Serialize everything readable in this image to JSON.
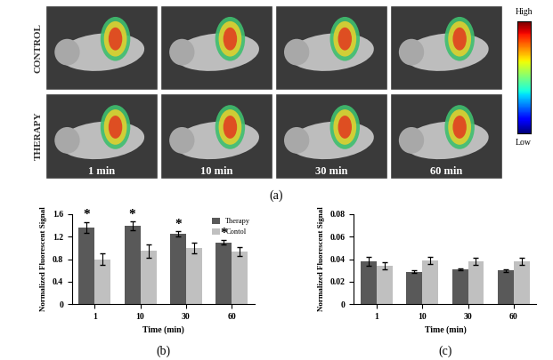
{
  "images": {
    "caption": "(a)",
    "rows": [
      "CONTROL",
      "THERAPY"
    ],
    "columns": [
      "1 min",
      "10 min",
      "30 min",
      "60 min"
    ],
    "colorbar": {
      "high": "High",
      "low": "Low"
    }
  },
  "chart_data": [
    {
      "type": "bar",
      "caption": "(b)",
      "x_label": "Time (min)",
      "y_label": "Normalized Fluorescent Signal",
      "categories": [
        "1",
        "10",
        "30",
        "60"
      ],
      "series": [
        {
          "name": "Therapy",
          "color": "#595959",
          "values": [
            1.36,
            1.39,
            1.25,
            1.1
          ],
          "errors": [
            0.1,
            0.08,
            0.05,
            0.04
          ]
        },
        {
          "name": "Contol",
          "color": "#c0c0c0",
          "values": [
            0.8,
            0.95,
            1.0,
            0.93
          ],
          "errors": [
            0.1,
            0.12,
            0.1,
            0.08
          ]
        }
      ],
      "annotations": [
        {
          "category": "1",
          "text": "*"
        },
        {
          "category": "10",
          "text": "*"
        },
        {
          "category": "30",
          "text": "*"
        },
        {
          "category": "60",
          "text": "*"
        }
      ],
      "ylim": [
        0,
        1.6
      ],
      "yticks": [
        0,
        0.4,
        0.8,
        1.2,
        1.6
      ],
      "legend": "upper right"
    },
    {
      "type": "bar",
      "caption": "(c)",
      "x_label": "Time (min)",
      "y_label": "Normalized Fluorescent Signal",
      "categories": [
        "1",
        "10",
        "30",
        "60"
      ],
      "series": [
        {
          "name": "Therapy",
          "color": "#595959",
          "values": [
            0.038,
            0.029,
            0.031,
            0.03
          ],
          "errors": [
            0.004,
            0.001,
            0.001,
            0.001
          ]
        },
        {
          "name": "Contol",
          "color": "#c0c0c0",
          "values": [
            0.034,
            0.039,
            0.038,
            0.038
          ],
          "errors": [
            0.003,
            0.003,
            0.003,
            0.003
          ]
        }
      ],
      "ylim": [
        0,
        0.08
      ],
      "yticks": [
        0,
        0.02,
        0.04,
        0.06,
        0.08
      ]
    }
  ]
}
